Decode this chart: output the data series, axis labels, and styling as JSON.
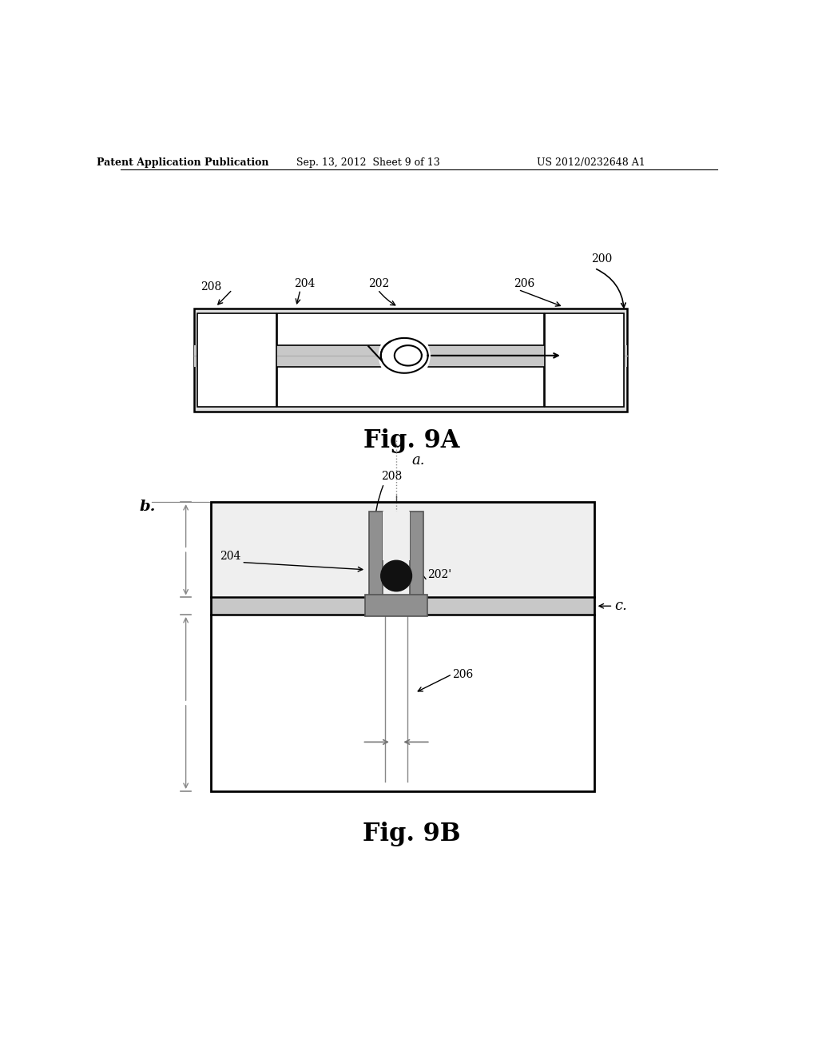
{
  "header_left": "Patent Application Publication",
  "header_mid": "Sep. 13, 2012  Sheet 9 of 13",
  "header_right": "US 2012/0232648 A1",
  "fig9a_label": "Fig. 9A",
  "fig9b_label": "Fig. 9B",
  "bg_color": "#ffffff",
  "line_color": "#000000",
  "gray_fill": "#d8d8d8",
  "gray_medium": "#aaaaaa",
  "gray_dark": "#777777",
  "label_200": "200",
  "label_202": "202",
  "label_204": "204",
  "label_206": "206",
  "label_208": "208",
  "label_202p": "202'",
  "label_208b": "208",
  "label_204b": "204",
  "label_206b": "206",
  "label_a": "a.",
  "label_b": "b.",
  "label_c": "c."
}
